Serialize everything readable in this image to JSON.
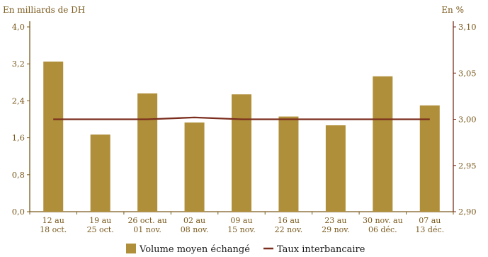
{
  "chart_data": {
    "type": "bar+line",
    "left_axis_label": "En milliards de DH",
    "right_axis_label": "En %",
    "left_ylim": [
      0,
      4.0
    ],
    "left_ticks": [
      "0,0",
      "0,8",
      "1,6",
      "2,4",
      "3,2",
      "4,0"
    ],
    "right_ylim": [
      2.9,
      3.1
    ],
    "right_ticks": [
      "2,90",
      "2,95",
      "3,00",
      "3,05",
      "3,10"
    ],
    "categories": [
      [
        "12 au",
        "18 oct."
      ],
      [
        "19 au",
        "25 oct."
      ],
      [
        "26 oct. au",
        "01 nov."
      ],
      [
        "02 au",
        "08 nov."
      ],
      [
        "09 au",
        "15 nov."
      ],
      [
        "16 au",
        "22 nov."
      ],
      [
        "23 au",
        "29 nov."
      ],
      [
        "30 nov. au",
        "06 déc."
      ],
      [
        "07 au",
        "13 déc."
      ]
    ],
    "series": [
      {
        "name": "Volume moyen échangé",
        "type": "bar",
        "axis": "left",
        "color": "#b08f3a",
        "values": [
          3.25,
          1.67,
          2.56,
          1.93,
          2.54,
          2.06,
          1.87,
          2.93,
          2.3
        ]
      },
      {
        "name": "Taux interbancaire",
        "type": "line",
        "axis": "right",
        "color": "#7b2e1e",
        "values": [
          3.0,
          3.0,
          3.0,
          3.002,
          3.0,
          3.0,
          3.0,
          3.0,
          3.0
        ]
      }
    ],
    "legend_position": "bottom",
    "grid": false
  },
  "colors": {
    "axis": "#7a5a1e",
    "right_axis": "#7b2e1e",
    "bar": "#b08f3a",
    "line": "#7b2e1e"
  }
}
